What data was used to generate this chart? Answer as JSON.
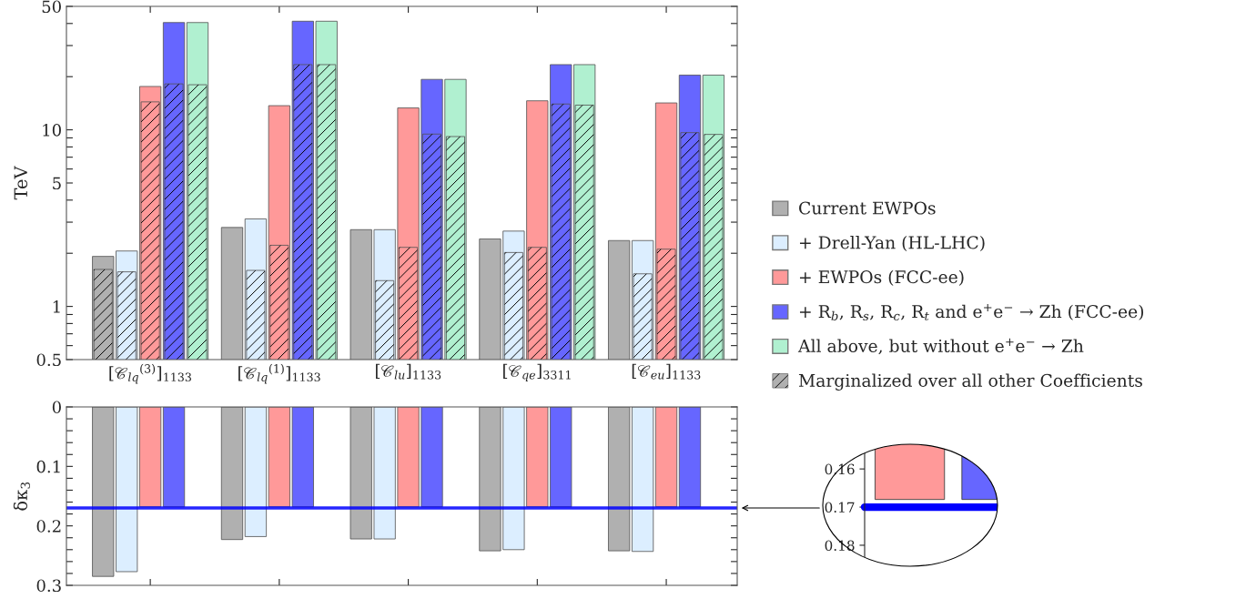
{
  "chart_data": [
    {
      "type": "bar",
      "ylabel": "TeV",
      "categories": [
        "[𝒞$_{lq}$$^{(3)}$]$_{1133}$",
        "[𝒞$_{lq}$$^{(1)}$]$_{1133}$",
        "[𝒞$_{lu}$]$_{1133}$",
        "[𝒞$_{qe}$]$_{3311}$",
        "[𝒞$_{eu}$]$_{1133}$"
      ],
      "series": [
        {
          "name": "Current EWPOs",
          "color": "#b0b0b0",
          "values": [
            1.92,
            2.8,
            2.72,
            2.41,
            2.36
          ]
        },
        {
          "name": "+ Drell-Yan (HL-LHC)",
          "color": "#dceeff",
          "values": [
            2.06,
            3.13,
            2.72,
            2.67,
            2.36
          ]
        },
        {
          "name": "+ EWPOs (FCC-ee)",
          "color": "#ff9999",
          "values": [
            17.6,
            13.7,
            13.3,
            14.6,
            14.2
          ]
        },
        {
          "name": "+ R$_{b}$, R$_{s}$, R$_{c}$, R$_{t}$ and e$^{+}$e$^{−}$ → Zh (FCC-ee)",
          "color": "#6666ff",
          "values": [
            40.5,
            41.2,
            19.3,
            23.4,
            20.4
          ]
        },
        {
          "name": "All above, but without e$^{+}$e$^{−}$ → Zh",
          "color": "#b0f0d0",
          "values": [
            40.5,
            41.2,
            19.3,
            23.4,
            20.4
          ]
        },
        {
          "name": "Marginalized over all other Coefficients",
          "color": "#b0b0b0",
          "values": [
            1.62,
            null,
            null,
            null,
            null
          ]
        },
        {
          "color": "#dceeff",
          "values": [
            1.57,
            1.6,
            1.4,
            2.02,
            1.53
          ]
        },
        {
          "color": "#ff9999",
          "values": [
            14.4,
            2.22,
            2.16,
            2.16,
            2.11
          ]
        },
        {
          "color": "#6666ff",
          "values": [
            18.2,
            23.4,
            9.46,
            14.0,
            9.64
          ]
        },
        {
          "color": "#b0f0d0",
          "values": [
            18.0,
            23.4,
            9.16,
            13.8,
            9.42
          ]
        }
      ],
      "log": true,
      "ylim": [
        0.5,
        50
      ],
      "yticks": [
        0.5,
        {
          "value": 0.6,
          "label": null
        },
        {
          "value": 0.7,
          "label": null
        },
        {
          "value": 0.8,
          "label": null
        },
        {
          "value": 0.9,
          "label": null
        },
        1,
        {
          "value": 2,
          "label": null
        },
        {
          "value": 3,
          "label": null
        },
        {
          "value": 4,
          "label": null
        },
        5,
        {
          "value": 6,
          "label": null
        },
        {
          "value": 7,
          "label": null
        },
        {
          "value": 8,
          "label": null
        },
        {
          "value": 9,
          "label": null
        },
        10,
        {
          "value": 20,
          "label": null
        },
        {
          "value": 30,
          "label": null
        },
        {
          "value": 40,
          "label": null
        },
        50
      ],
      "legend": "right"
    },
    {
      "type": "bar",
      "ylabel": "δκ$_{3}$",
      "categories": [
        null,
        null,
        null,
        null,
        null
      ],
      "series": [
        {
          "color": "#b0b0b0",
          "values": [
            0.285,
            0.223,
            0.222,
            0.242,
            0.242
          ]
        },
        {
          "color": "#dceeff",
          "values": [
            0.277,
            0.218,
            0.222,
            0.24,
            0.243
          ]
        },
        {
          "color": "#ff9999",
          "values": [
            0.168,
            0.168,
            0.168,
            0.168,
            0.168
          ]
        },
        {
          "color": "#6666ff",
          "values": [
            0.168,
            0.168,
            0.168,
            0.168,
            0.168
          ]
        }
      ],
      "ylim": [
        0.3,
        0
      ],
      "yticks": [
        0,
        {
          "value": 0.02,
          "label": null
        },
        {
          "value": 0.04,
          "label": null
        },
        {
          "value": 0.06,
          "label": null
        },
        {
          "value": 0.08,
          "label": null
        },
        0.1,
        {
          "value": 0.12,
          "label": null
        },
        {
          "value": 0.14,
          "label": null
        },
        {
          "value": 0.16,
          "label": null
        },
        {
          "value": 0.18,
          "label": null
        },
        0.2,
        {
          "value": 0.22,
          "label": null
        },
        {
          "value": 0.24,
          "label": null
        },
        {
          "value": 0.26,
          "label": null
        },
        {
          "value": 0.28,
          "label": null
        },
        0.3
      ],
      "ref_lines": [
        {
          "axis": "y",
          "value": 0.17,
          "color": "#0000ff"
        }
      ],
      "tick_labels": "y"
    },
    {
      "type": "bar",
      "categories": [
        null,
        null
      ],
      "series": [
        {
          "color": "#ff9999",
          "values": [
            0.168,
            null
          ]
        },
        {
          "color": "#6666ff",
          "values": [
            null,
            0.168
          ]
        }
      ],
      "ylim": [
        0.1855,
        0.154
      ],
      "yticks": [
        0.16,
        0.17,
        0.18
      ],
      "ref_lines": [
        {
          "axis": "y",
          "value": 0.17,
          "color": "#0000ff"
        }
      ],
      "tick_labels": "y"
    }
  ]
}
